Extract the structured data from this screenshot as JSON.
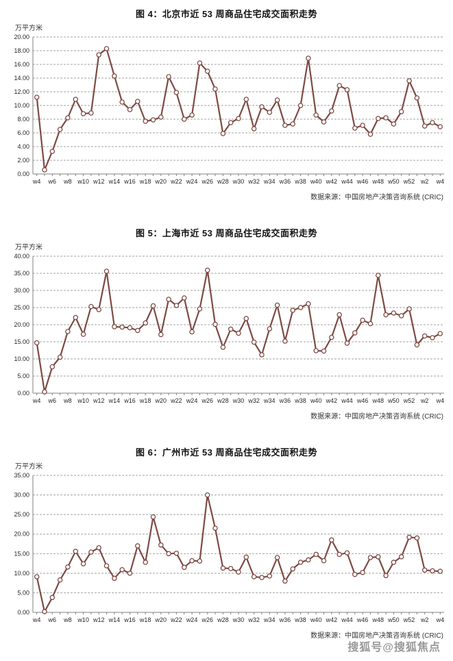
{
  "page": {
    "background": "#ffffff",
    "watermark_text": "搜狐号@搜狐焦点",
    "text_color": "#1a1a1a"
  },
  "chart_data": [
    {
      "type": "line",
      "title": "图 4：北京市近 53 周商品住宅成交面积走势",
      "unit_label": "万平方米",
      "source": "数据来源：中国房地产决策咨询系统 (CRIC)",
      "line_color": "#7d4a43",
      "marker": "circle-white",
      "grid": true,
      "legend": "none",
      "ylim": [
        0,
        20
      ],
      "ytick_step": 2,
      "ytick_decimals": 2,
      "x_tick_labels": [
        "w4",
        "w6",
        "w8",
        "w10",
        "w12",
        "w14",
        "w16",
        "w18",
        "w20",
        "w22",
        "w24",
        "w26",
        "w28",
        "w30",
        "w32",
        "w34",
        "w36",
        "w38",
        "w40",
        "w42",
        "w44",
        "w46",
        "w48",
        "w50",
        "w52",
        "w2",
        "w4"
      ],
      "weeks": [
        "w4",
        "w5",
        "w6",
        "w7",
        "w8",
        "w9",
        "w10",
        "w11",
        "w12",
        "w13",
        "w14",
        "w15",
        "w16",
        "w17",
        "w18",
        "w19",
        "w20",
        "w21",
        "w22",
        "w23",
        "w24",
        "w25",
        "w26",
        "w27",
        "w28",
        "w29",
        "w30",
        "w31",
        "w32",
        "w33",
        "w34",
        "w35",
        "w36",
        "w37",
        "w38",
        "w39",
        "w40",
        "w41",
        "w42",
        "w43",
        "w44",
        "w45",
        "w46",
        "w47",
        "w48",
        "w49",
        "w50",
        "w51",
        "w52",
        "w1",
        "w2",
        "w3",
        "w4"
      ],
      "values": [
        11.2,
        0.6,
        3.3,
        6.5,
        8.2,
        10.9,
        8.8,
        8.9,
        17.4,
        18.3,
        14.3,
        10.5,
        9.4,
        10.6,
        7.7,
        7.9,
        8.3,
        14.2,
        11.9,
        8.0,
        8.6,
        16.2,
        15.0,
        12.4,
        5.9,
        7.5,
        8.1,
        10.9,
        6.6,
        9.8,
        9.0,
        10.8,
        7.1,
        7.3,
        10.0,
        16.9,
        8.6,
        7.6,
        9.2,
        12.9,
        12.3,
        6.7,
        7.1,
        5.8,
        8.1,
        8.2,
        7.3,
        9.1,
        13.6,
        11.1,
        7.0,
        7.5,
        6.9
      ]
    },
    {
      "type": "line",
      "title": "图 5：上海市近 53 周商品住宅成交面积走势",
      "unit_label": "万平方米",
      "source": "数据来源：中国房地产决策咨询系统 (CRIC)",
      "line_color": "#7d4a43",
      "marker": "circle-white",
      "grid": true,
      "legend": "none",
      "ylim": [
        0,
        40
      ],
      "ytick_step": 5,
      "ytick_decimals": 2,
      "x_tick_labels": [
        "w4",
        "w6",
        "w8",
        "w10",
        "w12",
        "w14",
        "w16",
        "w18",
        "w20",
        "w22",
        "w24",
        "w26",
        "w28",
        "w30",
        "w32",
        "w34",
        "w36",
        "w38",
        "w40",
        "w42",
        "w44",
        "w46",
        "w48",
        "w50",
        "w52",
        "w2",
        "w4"
      ],
      "weeks": [
        "w4",
        "w5",
        "w6",
        "w7",
        "w8",
        "w9",
        "w10",
        "w11",
        "w12",
        "w13",
        "w14",
        "w15",
        "w16",
        "w17",
        "w18",
        "w19",
        "w20",
        "w21",
        "w22",
        "w23",
        "w24",
        "w25",
        "w26",
        "w27",
        "w28",
        "w29",
        "w30",
        "w31",
        "w32",
        "w33",
        "w34",
        "w35",
        "w36",
        "w37",
        "w38",
        "w39",
        "w40",
        "w41",
        "w42",
        "w43",
        "w44",
        "w45",
        "w46",
        "w47",
        "w48",
        "w49",
        "w50",
        "w51",
        "w52",
        "w1",
        "w2",
        "w3",
        "w4"
      ],
      "values": [
        14.7,
        0.4,
        7.7,
        10.5,
        18.0,
        22.1,
        17.2,
        25.3,
        24.4,
        35.6,
        19.4,
        19.3,
        19.1,
        18.3,
        20.5,
        25.5,
        17.1,
        27.4,
        25.6,
        27.8,
        17.9,
        24.6,
        35.9,
        20.1,
        13.4,
        18.7,
        17.5,
        21.8,
        14.9,
        11.2,
        18.8,
        25.7,
        15.2,
        24.2,
        25.0,
        26.1,
        12.4,
        12.3,
        16.3,
        22.9,
        14.6,
        17.6,
        21.3,
        20.3,
        34.4,
        22.9,
        23.4,
        22.6,
        24.6,
        14.1,
        16.7,
        16.2,
        17.4
      ]
    },
    {
      "type": "line",
      "title": "图 6：广州市近 53 周商品住宅成交面积走势",
      "unit_label": "万平方米",
      "source": "数据来源：中国房地产决策咨询系统 (CRIC)",
      "line_color": "#7d4a43",
      "marker": "circle-white",
      "grid": true,
      "legend": "none",
      "ylim": [
        0,
        35
      ],
      "ytick_step": 5,
      "ytick_decimals": 2,
      "x_tick_labels": [
        "w4",
        "w6",
        "w8",
        "w10",
        "w12",
        "w14",
        "w16",
        "w18",
        "w20",
        "w22",
        "w24",
        "w26",
        "w28",
        "w30",
        "w32",
        "w34",
        "w36",
        "w38",
        "w40",
        "w42",
        "w44",
        "w46",
        "w48",
        "w50",
        "w52",
        "w2",
        "w4"
      ],
      "weeks": [
        "w4",
        "w5",
        "w6",
        "w7",
        "w8",
        "w9",
        "w10",
        "w11",
        "w12",
        "w13",
        "w14",
        "w15",
        "w16",
        "w17",
        "w18",
        "w19",
        "w20",
        "w21",
        "w22",
        "w23",
        "w24",
        "w25",
        "w26",
        "w27",
        "w28",
        "w29",
        "w30",
        "w31",
        "w32",
        "w33",
        "w34",
        "w35",
        "w36",
        "w37",
        "w38",
        "w39",
        "w40",
        "w41",
        "w42",
        "w43",
        "w44",
        "w45",
        "w46",
        "w47",
        "w48",
        "w49",
        "w50",
        "w51",
        "w52",
        "w1",
        "w2",
        "w3",
        "w4"
      ],
      "values": [
        9.1,
        0.2,
        3.8,
        8.3,
        11.6,
        15.6,
        12.4,
        15.4,
        16.5,
        11.9,
        8.7,
        10.9,
        10.0,
        17.0,
        12.8,
        24.4,
        17.2,
        15.0,
        15.1,
        11.5,
        13.2,
        13.1,
        30.0,
        21.5,
        11.3,
        11.2,
        10.3,
        14.1,
        9.1,
        8.9,
        9.3,
        14.0,
        8.0,
        11.1,
        12.8,
        13.4,
        14.8,
        13.2,
        18.5,
        14.8,
        15.2,
        9.7,
        10.2,
        14.0,
        14.2,
        9.4,
        12.8,
        14.2,
        19.2,
        19.0,
        10.8,
        10.6,
        10.5
      ]
    }
  ],
  "style": {
    "grid_color": "#a0a0a0",
    "axis_color": "#808080",
    "tick_label_color": "#262626"
  }
}
